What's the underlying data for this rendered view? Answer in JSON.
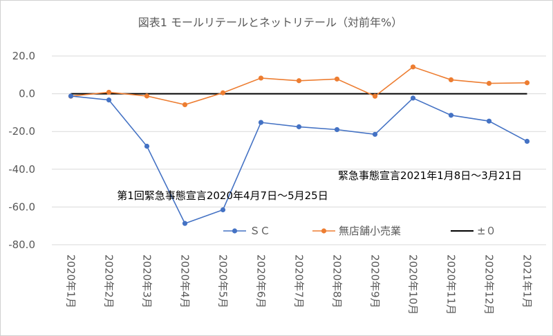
{
  "chart_data": {
    "type": "line",
    "title": "図表1 モールリテールとネットリテール（対前年%）",
    "categories": [
      "2020年1月",
      "2020年2月",
      "2020年3月",
      "2020年4月",
      "2020年5月",
      "2020年6月",
      "2020年7月",
      "2020年8月",
      "2020年9月",
      "2020年10月",
      "2020年11月",
      "2020年12月",
      "2021年1月"
    ],
    "series": [
      {
        "name": "ＳＣ",
        "color": "#4472C4",
        "marker": "circle",
        "values": [
          -1.2,
          -3.3,
          -27.8,
          -68.7,
          -61.5,
          -15.2,
          -17.5,
          -19.0,
          -21.5,
          -2.3,
          -11.4,
          -14.5,
          -25.2
        ]
      },
      {
        "name": "無店舗小売業",
        "color": "#ED7D31",
        "marker": "circle",
        "values": [
          -1.3,
          0.8,
          -1.2,
          -5.8,
          0.5,
          8.3,
          6.9,
          7.8,
          -1.3,
          14.2,
          7.4,
          5.5,
          5.8
        ]
      },
      {
        "name": "±０",
        "color": "#000000",
        "marker": "none",
        "values": [
          0,
          0,
          0,
          0,
          0,
          0,
          0,
          0,
          0,
          0,
          0,
          0,
          0
        ]
      }
    ],
    "yticks": [
      "20.0",
      "0.0",
      "-20.0",
      "-40.0",
      "-60.0",
      "-80.0"
    ],
    "ylim": [
      -80,
      20
    ],
    "grid": true,
    "legend": "bottom-right",
    "annotations": [
      "緊急事態宣言2021年1月8日～3月21日",
      "第1回緊急事態宣言2020年4月7日～5月25日"
    ]
  }
}
